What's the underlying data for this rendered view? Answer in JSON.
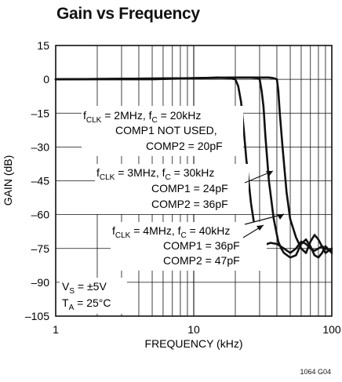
{
  "chart_data": {
    "type": "line",
    "title": "Gain vs Frequency",
    "xlabel": "FREQUENCY (kHz)",
    "ylabel": "GAIN (dB)",
    "xscale": "log",
    "xlim": [
      1,
      100
    ],
    "ylim": [
      -105,
      15
    ],
    "grid": true,
    "x_ticks": [
      1,
      10,
      100
    ],
    "y_ticks": [
      15,
      0,
      -15,
      -30,
      -45,
      -60,
      -75,
      -90,
      -105
    ],
    "x_tick_labels": [
      "1",
      "10",
      "100"
    ],
    "y_tick_labels": [
      "15",
      "0",
      "–15",
      "–30",
      "–45",
      "–60",
      "–75",
      "–90",
      "–105"
    ],
    "series": [
      {
        "x": [
          1,
          5,
          10,
          15,
          18,
          20,
          21,
          22,
          23,
          24,
          26,
          28,
          30,
          32,
          34,
          36,
          40,
          45,
          50,
          55,
          60,
          65,
          70,
          75,
          80,
          85,
          90,
          100
        ],
        "y": [
          0,
          0,
          0.5,
          0.8,
          0.5,
          0,
          -3,
          -10,
          -22,
          -35,
          -55,
          -68,
          -73,
          -74,
          -73,
          -72.5,
          -73,
          -75,
          -77,
          -75,
          -72,
          -73,
          -75,
          -76,
          -75,
          -74,
          -75,
          -76
        ]
      },
      {
        "x": [
          1,
          10,
          20,
          26,
          29,
          30,
          31,
          32,
          33,
          35,
          38,
          41,
          43,
          45,
          50,
          55,
          60,
          65,
          70,
          75,
          80,
          85,
          90,
          100
        ],
        "y": [
          0,
          0.5,
          0.8,
          0.8,
          0.5,
          0,
          -5,
          -12,
          -25,
          -45,
          -62,
          -72,
          -75,
          -77,
          -79,
          -78,
          -73,
          -71,
          -74,
          -78,
          -79,
          -77,
          -74,
          -77
        ]
      },
      {
        "x": [
          1,
          10,
          20,
          35,
          38,
          40,
          41,
          42,
          44,
          47,
          50,
          55,
          60,
          65,
          70,
          75,
          80,
          90,
          100
        ],
        "y": [
          0,
          0.5,
          0.8,
          0.8,
          0.5,
          0,
          -5,
          -15,
          -30,
          -50,
          -62,
          -70,
          -75,
          -77,
          -72,
          -69,
          -71,
          -77,
          -75
        ]
      }
    ],
    "annotations": [
      {
        "lines": [
          "f_CLK = 2MHz, f_C = 20kHz",
          "COMP1 NOT USED,",
          "COMP2 = 20pF"
        ]
      },
      {
        "lines": [
          "f_CLK = 3MHz, f_C = 30kHz",
          "COMP1 = 24pF",
          "COMP2 = 36pF"
        ]
      },
      {
        "lines": [
          "f_CLK = 4MHz, f_C = 40kHz",
          "COMP1 = 36pF",
          "COMP2 = 47pF"
        ]
      },
      {
        "lines": [
          "V_S = ±5V",
          "T_A = 25°C"
        ]
      }
    ]
  },
  "figure_id": "1064 G04"
}
